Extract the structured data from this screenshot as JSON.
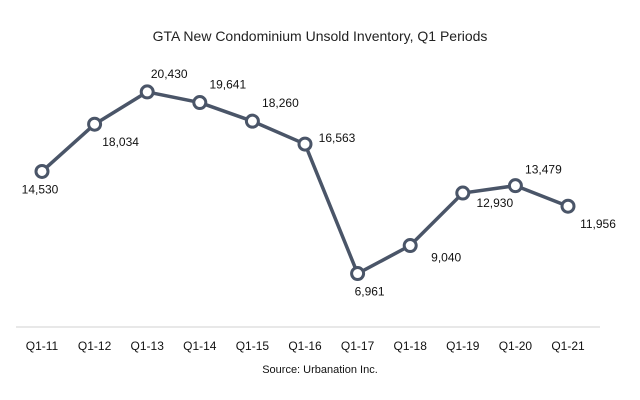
{
  "chart_data": {
    "type": "line",
    "title": "GTA New Condominium Unsold Inventory, Q1 Periods",
    "categories": [
      "Q1-11",
      "Q1-12",
      "Q1-13",
      "Q1-14",
      "Q1-15",
      "Q1-16",
      "Q1-17",
      "Q1-18",
      "Q1-19",
      "Q1-20",
      "Q1-21"
    ],
    "series": [
      {
        "name": "Unsold Inventory",
        "values": [
          14530,
          18034,
          20430,
          19641,
          18260,
          16563,
          6961,
          9040,
          12930,
          13479,
          11956
        ],
        "labels": [
          "14,530",
          "18,034",
          "20,430",
          "19,641",
          "18,260",
          "16,563",
          "6,961",
          "9,040",
          "12,930",
          "13,479",
          "11,956"
        ]
      }
    ],
    "xlabel": "",
    "ylabel": "",
    "ylim": [
      0,
      24000
    ],
    "grid": false,
    "legend": "none",
    "source": "Source: Urbanation Inc.",
    "colors": {
      "line": "#4a5568",
      "marker_fill": "#ffffff"
    }
  }
}
